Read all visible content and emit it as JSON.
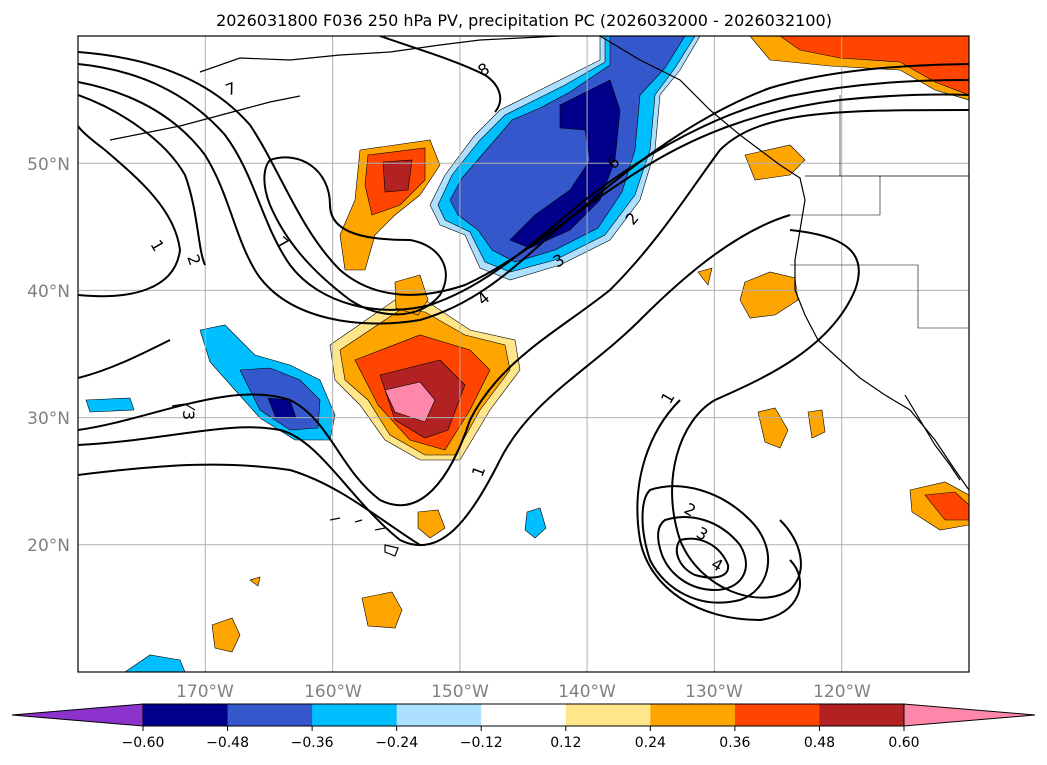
{
  "chart_data": {
    "type": "contour-map",
    "title": "2026031800 F036 250 hPa PV, precipitation PC (2026032000 - 2026032100)",
    "x_ticks": [
      "170°W",
      "160°W",
      "150°W",
      "140°W",
      "130°W",
      "120°W"
    ],
    "y_ticks": [
      "20°N",
      "30°N",
      "40°N",
      "50°N"
    ],
    "lon_range": [
      -180,
      -110
    ],
    "lat_range": [
      10,
      60
    ],
    "grid": true,
    "colorbar": {
      "orientation": "horizontal",
      "extend": "both",
      "tick_labels": [
        "−0.60",
        "−0.48",
        "−0.36",
        "−0.24",
        "−0.12",
        "0.12",
        "0.24",
        "0.36",
        "0.48",
        "0.60"
      ],
      "bounds": [
        -0.6,
        -0.48,
        -0.36,
        -0.24,
        -0.12,
        0.12,
        0.24,
        0.36,
        0.48,
        0.6
      ],
      "colors": [
        "#8b33cc",
        "#00008b",
        "#3557cc",
        "#00bfff",
        "#ade0ff",
        "#ffffff",
        "#ffe68a",
        "#ffa500",
        "#ff4500",
        "#b22222",
        "#ff88aa"
      ]
    },
    "pv_contour_labels": [
      "1",
      "2",
      "3",
      "4",
      "6",
      "7",
      "8"
    ]
  }
}
